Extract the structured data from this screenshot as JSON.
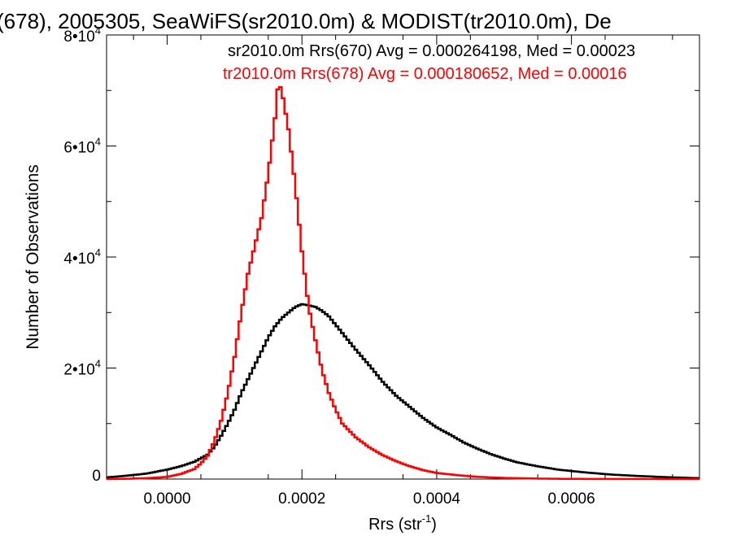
{
  "chart_data": {
    "type": "line",
    "title": "(678), 2005305, SeaWiFS(sr2010.0m) & MODIST(tr2010.0m), De",
    "xlabel": "Rrs (str",
    "xlabel_sup": "-1",
    "xlabel_end": ")",
    "ylabel": "Number of Observations",
    "xlim": [
      -9e-05,
      0.00079
    ],
    "ylim": [
      0,
      80000
    ],
    "grid": false,
    "x_ticks": [
      {
        "value": 0.0,
        "label": "0.0000"
      },
      {
        "value": 0.0002,
        "label": "0.0002"
      },
      {
        "value": 0.0004,
        "label": "0.0004"
      },
      {
        "value": 0.0006,
        "label": "0.0006"
      }
    ],
    "y_ticks": [
      {
        "value": 0,
        "base": "0",
        "exp": ""
      },
      {
        "value": 20000,
        "base": "2•10",
        "exp": "4"
      },
      {
        "value": 40000,
        "base": "4•10",
        "exp": "4"
      },
      {
        "value": 60000,
        "base": "6•10",
        "exp": "4"
      },
      {
        "value": 80000,
        "base": "8•10",
        "exp": "4"
      }
    ],
    "annotations": [
      {
        "text": "sr2010.0m Rrs(670) Avg = 0.000264198, Med = 0.00023",
        "color": "#000000"
      },
      {
        "text": "tr2010.0m Rrs(678) Avg = 0.000180652, Med = 0.00016",
        "color": "#ff0000"
      }
    ],
    "series": [
      {
        "color": "#000000",
        "points": [
          [
            -9e-05,
            300
          ],
          [
            -6e-05,
            600
          ],
          [
            -3e-05,
            1000
          ],
          [
            0.0,
            1700
          ],
          [
            2e-05,
            2300
          ],
          [
            4e-05,
            3100
          ],
          [
            6e-05,
            4400
          ],
          [
            7e-05,
            5800
          ],
          [
            8e-05,
            7800
          ],
          [
            9e-05,
            10000
          ],
          [
            0.0001,
            12500
          ],
          [
            0.00011,
            15500
          ],
          [
            0.00012,
            18000
          ],
          [
            0.00013,
            20500
          ],
          [
            0.00014,
            23000
          ],
          [
            0.00015,
            25500
          ],
          [
            0.00016,
            27500
          ],
          [
            0.00017,
            29000
          ],
          [
            0.00018,
            30000
          ],
          [
            0.00019,
            31000
          ],
          [
            0.0002,
            31500
          ],
          [
            0.00021,
            31300
          ],
          [
            0.00022,
            31000
          ],
          [
            0.00023,
            30300
          ],
          [
            0.00024,
            29300
          ],
          [
            0.00025,
            27800
          ],
          [
            0.00026,
            26300
          ],
          [
            0.00027,
            24800
          ],
          [
            0.00028,
            23300
          ],
          [
            0.0003,
            20500
          ],
          [
            0.00032,
            17500
          ],
          [
            0.00034,
            15000
          ],
          [
            0.00036,
            13000
          ],
          [
            0.00038,
            11000
          ],
          [
            0.0004,
            9300
          ],
          [
            0.00042,
            8000
          ],
          [
            0.00044,
            6600
          ],
          [
            0.00046,
            5500
          ],
          [
            0.00048,
            4500
          ],
          [
            0.0005,
            3700
          ],
          [
            0.00052,
            3000
          ],
          [
            0.00055,
            2300
          ],
          [
            0.00058,
            1700
          ],
          [
            0.00062,
            1200
          ],
          [
            0.00066,
            800
          ],
          [
            0.0007,
            550
          ],
          [
            0.00074,
            350
          ],
          [
            0.00079,
            150
          ]
        ]
      },
      {
        "color": "#ff0000",
        "points": [
          [
            -9e-05,
            0
          ],
          [
            -6e-05,
            50
          ],
          [
            -3e-05,
            150
          ],
          [
            0.0,
            400
          ],
          [
            2e-05,
            900
          ],
          [
            4e-05,
            1800
          ],
          [
            5e-05,
            2800
          ],
          [
            6e-05,
            4200
          ],
          [
            7e-05,
            6800
          ],
          [
            8e-05,
            10500
          ],
          [
            9e-05,
            15500
          ],
          [
            0.0001,
            22000
          ],
          [
            0.00011,
            30000
          ],
          [
            0.00012,
            37000
          ],
          [
            0.00013,
            42000
          ],
          [
            0.00014,
            47000
          ],
          [
            0.00015,
            55000
          ],
          [
            0.00016,
            65000
          ],
          [
            0.000165,
            71500
          ],
          [
            0.00017,
            70000
          ],
          [
            0.00018,
            63000
          ],
          [
            0.00019,
            53000
          ],
          [
            0.0002,
            41000
          ],
          [
            0.00021,
            31000
          ],
          [
            0.00022,
            25000
          ],
          [
            0.00023,
            19500
          ],
          [
            0.00024,
            15500
          ],
          [
            0.00025,
            12500
          ],
          [
            0.00026,
            10000
          ],
          [
            0.00028,
            7500
          ],
          [
            0.0003,
            5700
          ],
          [
            0.00032,
            4300
          ],
          [
            0.00034,
            3200
          ],
          [
            0.00036,
            2300
          ],
          [
            0.00038,
            1600
          ],
          [
            0.0004,
            1100
          ],
          [
            0.00043,
            700
          ],
          [
            0.00046,
            400
          ],
          [
            0.0005,
            200
          ],
          [
            0.00055,
            80
          ],
          [
            0.0006,
            30
          ],
          [
            0.00079,
            0
          ]
        ]
      }
    ]
  }
}
